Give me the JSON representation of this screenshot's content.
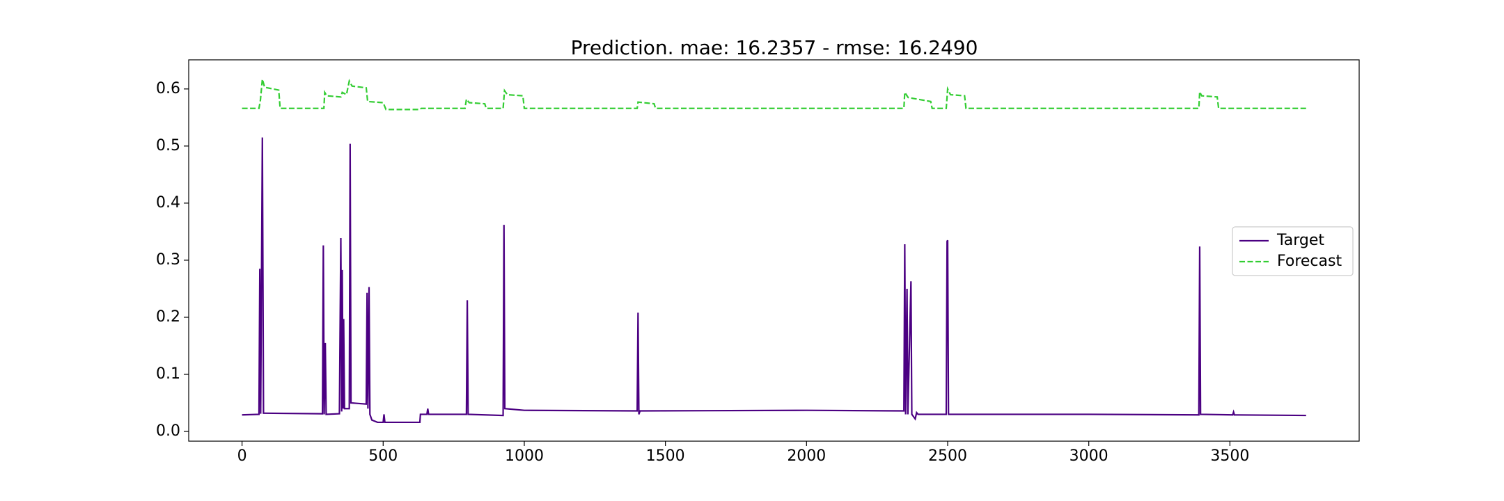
{
  "chart_data": {
    "type": "line",
    "title": "Prediction. mae: 16.2357 - rmse: 16.2490",
    "xlim": [
      -189,
      3958
    ],
    "xticks": [
      0,
      500,
      1000,
      1500,
      2000,
      2500,
      3000,
      3500
    ],
    "ylim": [
      -0.017,
      0.651
    ],
    "yticks": [
      {
        "value": 0,
        "label": "0.0"
      },
      0.1,
      0.2,
      0.3,
      0.4,
      0.5,
      0.6
    ],
    "legend": "right",
    "series": [
      {
        "name": "Target",
        "color": "#4b0082",
        "dashed": false,
        "x": [
          0,
          60,
          63,
          66,
          72,
          76,
          285,
          288,
          291,
          295,
          298,
          345,
          350,
          353,
          355,
          358,
          360,
          363,
          380,
          383,
          386,
          440,
          443,
          446,
          450,
          453,
          460,
          480,
          500,
          503,
          506,
          630,
          632,
          655,
          658,
          661,
          795,
          798,
          801,
          925,
          928,
          931,
          1000,
          1400,
          1403,
          1406,
          1410,
          2000,
          2345,
          2348,
          2351,
          2356,
          2359,
          2370,
          2373,
          2385,
          2390,
          2395,
          2495,
          2498,
          2500,
          2503,
          3000,
          3390,
          3393,
          3396,
          3510,
          3513,
          3516,
          3770
        ],
        "values": [
          0.029,
          0.03,
          0.285,
          0.031,
          0.515,
          0.032,
          0.031,
          0.326,
          0.03,
          0.155,
          0.03,
          0.031,
          0.339,
          0.035,
          0.283,
          0.04,
          0.197,
          0.04,
          0.04,
          0.504,
          0.05,
          0.048,
          0.243,
          0.04,
          0.253,
          0.03,
          0.02,
          0.016,
          0.016,
          0.03,
          0.016,
          0.016,
          0.03,
          0.03,
          0.04,
          0.03,
          0.03,
          0.23,
          0.03,
          0.028,
          0.362,
          0.04,
          0.037,
          0.036,
          0.208,
          0.03,
          0.036,
          0.037,
          0.036,
          0.328,
          0.03,
          0.25,
          0.03,
          0.263,
          0.03,
          0.022,
          0.033,
          0.03,
          0.03,
          0.333,
          0.335,
          0.03,
          0.03,
          0.029,
          0.324,
          0.03,
          0.029,
          0.034,
          0.029,
          0.028
        ]
      },
      {
        "name": "Forecast",
        "color": "#32cd32",
        "dashed": true,
        "x": [
          0,
          60,
          65,
          72,
          80,
          130,
          135,
          290,
          293,
          300,
          350,
          355,
          370,
          380,
          390,
          440,
          445,
          500,
          510,
          630,
          635,
          790,
          795,
          805,
          860,
          865,
          925,
          930,
          940,
          995,
          1000,
          1400,
          1403,
          1460,
          1465,
          2345,
          2348,
          2360,
          2440,
          2445,
          2495,
          2500,
          2510,
          2560,
          2565,
          3390,
          3393,
          3400,
          3455,
          3460,
          3770
        ],
        "values": [
          0.566,
          0.566,
          0.58,
          0.617,
          0.603,
          0.598,
          0.566,
          0.566,
          0.594,
          0.588,
          0.586,
          0.594,
          0.59,
          0.614,
          0.605,
          0.602,
          0.578,
          0.576,
          0.564,
          0.564,
          0.566,
          0.566,
          0.582,
          0.576,
          0.574,
          0.566,
          0.566,
          0.597,
          0.59,
          0.588,
          0.566,
          0.566,
          0.577,
          0.574,
          0.566,
          0.566,
          0.594,
          0.585,
          0.578,
          0.566,
          0.566,
          0.6,
          0.59,
          0.588,
          0.566,
          0.566,
          0.595,
          0.588,
          0.586,
          0.566,
          0.566
        ]
      }
    ]
  }
}
